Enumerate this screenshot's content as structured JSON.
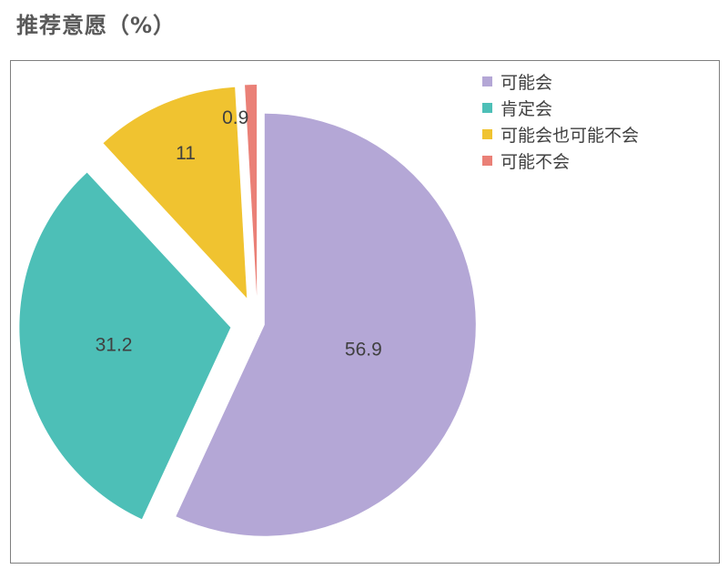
{
  "page": {
    "title": "推荐意愿（%）"
  },
  "chart_data": {
    "type": "pie",
    "title": "推荐意愿（%）",
    "exploded": true,
    "legend_position": "top-right",
    "slices": [
      {
        "name": "可能会",
        "value": 56.9,
        "label": "56.9",
        "color": "#b4a7d6"
      },
      {
        "name": "肯定会",
        "value": 31.2,
        "label": "31.2",
        "color": "#4dbfb7"
      },
      {
        "name": "可能会也可能不会",
        "value": 11,
        "label": "11",
        "color": "#f0c330"
      },
      {
        "name": "可能不会",
        "value": 0.9,
        "label": "0.9",
        "color": "#ea8077"
      }
    ]
  }
}
